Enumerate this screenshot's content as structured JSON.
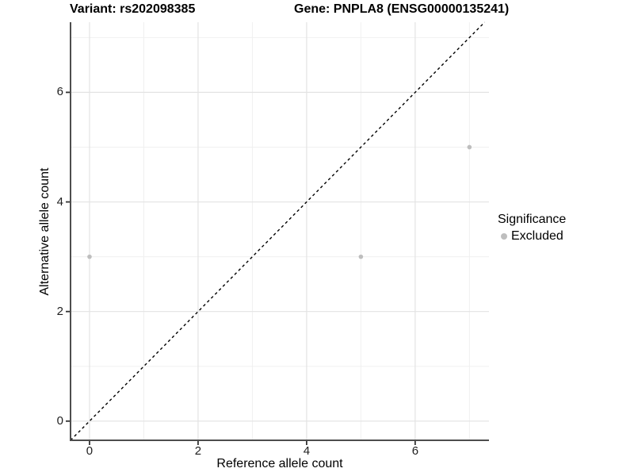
{
  "chart_data": {
    "type": "scatter",
    "title_left": "Variant: rs202098385",
    "title_right": "Gene: PNPLA8 (ENSG00000135241)",
    "xlabel": "Reference allele count",
    "ylabel": "Alternative allele count",
    "xlim": [
      -0.35,
      7.36
    ],
    "ylim": [
      -0.35,
      7.28
    ],
    "x_major_ticks": [
      0,
      2,
      4,
      6
    ],
    "y_major_ticks": [
      0,
      2,
      4,
      6
    ],
    "x_minor_ticks": [
      1,
      3,
      5,
      7
    ],
    "y_minor_ticks": [
      1,
      3,
      5,
      7
    ],
    "grid": true,
    "legend_position": "right",
    "identity_line": {
      "equation": "y = x",
      "style": "dashed",
      "color": "#000000"
    },
    "series": [
      {
        "name": "Excluded",
        "color": "#bebebe",
        "points": [
          {
            "x": 0,
            "y": 3
          },
          {
            "x": 5,
            "y": 3
          },
          {
            "x": 7,
            "y": 5
          }
        ]
      }
    ],
    "legend": {
      "title": "Significance",
      "items": [
        {
          "label": "Excluded",
          "color": "#bebebe"
        }
      ]
    },
    "colors": {
      "point": "#bebebe",
      "grid_major": "#e3e3e3",
      "grid_minor": "#f0f0f0",
      "axis_line": "#4d4d4d",
      "tick_mark": "#333333",
      "dashed_line": "#000000",
      "background": "#ffffff"
    }
  }
}
